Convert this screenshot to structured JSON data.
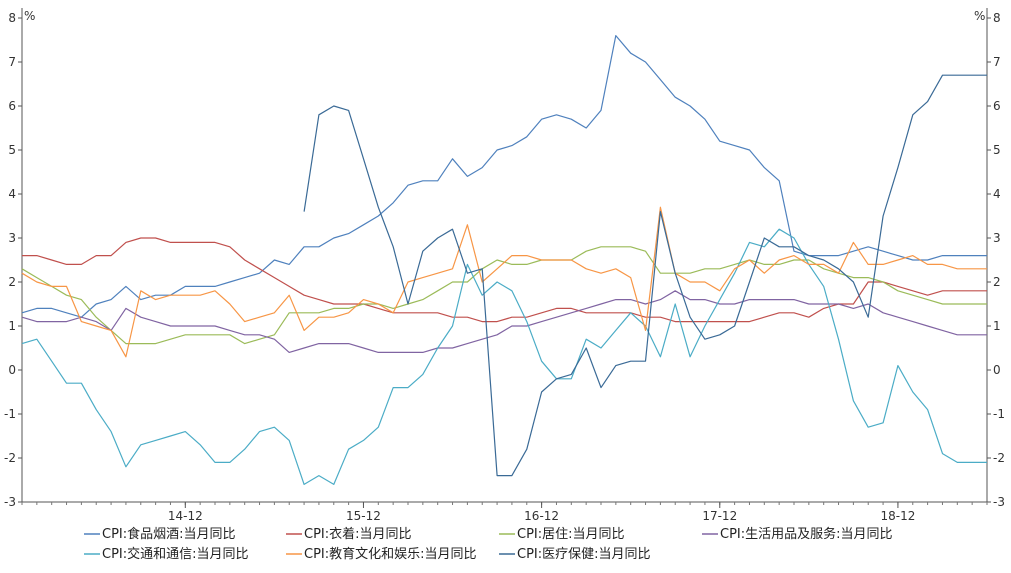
{
  "chart_data": {
    "type": "line",
    "title": "",
    "y_unit_left": "%",
    "y_unit_right": "%",
    "ylim": [
      -3,
      8
    ],
    "yticks": [
      -3,
      -2,
      -1,
      0,
      1,
      2,
      3,
      4,
      5,
      6,
      7,
      8
    ],
    "x_start": "2014-01",
    "x_end": "2019-06",
    "xticks": [
      "14-12",
      "15-12",
      "16-12",
      "17-12",
      "18-12"
    ],
    "grid": false,
    "legend_position": "bottom",
    "series": [
      {
        "name": "CPI:食品烟酒:当月同比",
        "color": "#4f81bd",
        "values": [
          1.3,
          1.4,
          1.4,
          1.3,
          1.2,
          1.5,
          1.6,
          1.9,
          1.6,
          1.7,
          1.7,
          1.9,
          1.9,
          1.9,
          2.0,
          2.1,
          2.2,
          2.5,
          2.4,
          2.8,
          2.8,
          3.0,
          3.1,
          3.3,
          3.5,
          3.8,
          4.2,
          4.3,
          4.3,
          4.8,
          4.4,
          4.6,
          5.0,
          5.1,
          5.3,
          5.7,
          5.8,
          5.7,
          5.5,
          5.9,
          7.6,
          7.2,
          7.0,
          6.6,
          6.2,
          6.0,
          5.7,
          5.2,
          5.1,
          5.0,
          4.6,
          4.3,
          2.7,
          2.6,
          2.6,
          2.6,
          2.7,
          2.8,
          2.7,
          2.6,
          2.5,
          2.5,
          2.6,
          2.6,
          2.6,
          2.6
        ]
      },
      {
        "name": "CPI:衣着:当月同比",
        "color": "#c0504d",
        "values": [
          2.6,
          2.6,
          2.5,
          2.4,
          2.4,
          2.6,
          2.6,
          2.9,
          3.0,
          3.0,
          2.9,
          2.9,
          2.9,
          2.9,
          2.8,
          2.5,
          2.3,
          2.1,
          1.9,
          1.7,
          1.6,
          1.5,
          1.5,
          1.5,
          1.4,
          1.3,
          1.3,
          1.3,
          1.3,
          1.2,
          1.2,
          1.1,
          1.1,
          1.2,
          1.2,
          1.3,
          1.4,
          1.4,
          1.3,
          1.3,
          1.3,
          1.3,
          1.2,
          1.2,
          1.1,
          1.1,
          1.1,
          1.1,
          1.1,
          1.1,
          1.2,
          1.3,
          1.3,
          1.2,
          1.4,
          1.5,
          1.5,
          2.0,
          2.0,
          1.9,
          1.8,
          1.7,
          1.8,
          1.8,
          1.8,
          1.8
        ]
      },
      {
        "name": "CPI:居住:当月同比",
        "color": "#9bbb59",
        "values": [
          2.3,
          2.1,
          1.9,
          1.7,
          1.6,
          1.2,
          0.9,
          0.6,
          0.6,
          0.6,
          0.7,
          0.8,
          0.8,
          0.8,
          0.8,
          0.6,
          0.7,
          0.8,
          1.3,
          1.3,
          1.3,
          1.4,
          1.4,
          1.5,
          1.5,
          1.4,
          1.5,
          1.6,
          1.8,
          2.0,
          2.0,
          2.3,
          2.5,
          2.4,
          2.4,
          2.5,
          2.5,
          2.5,
          2.7,
          2.8,
          2.8,
          2.8,
          2.7,
          2.2,
          2.2,
          2.2,
          2.3,
          2.3,
          2.4,
          2.5,
          2.4,
          2.4,
          2.5,
          2.5,
          2.3,
          2.2,
          2.1,
          2.1,
          2.0,
          1.8,
          1.7,
          1.6,
          1.5,
          1.5,
          1.5,
          1.5
        ]
      },
      {
        "name": "CPI:生活用品及服务:当月同比",
        "color": "#8064a2",
        "values": [
          1.2,
          1.1,
          1.1,
          1.1,
          1.2,
          1.1,
          0.9,
          1.4,
          1.2,
          1.1,
          1.0,
          1.0,
          1.0,
          1.0,
          0.9,
          0.8,
          0.8,
          0.7,
          0.4,
          0.5,
          0.6,
          0.6,
          0.6,
          0.5,
          0.4,
          0.4,
          0.4,
          0.4,
          0.5,
          0.5,
          0.6,
          0.7,
          0.8,
          1.0,
          1.0,
          1.1,
          1.2,
          1.3,
          1.4,
          1.5,
          1.6,
          1.6,
          1.5,
          1.6,
          1.8,
          1.6,
          1.6,
          1.5,
          1.5,
          1.6,
          1.6,
          1.6,
          1.6,
          1.5,
          1.5,
          1.5,
          1.4,
          1.5,
          1.3,
          1.2,
          1.1,
          1.0,
          0.9,
          0.8,
          0.8,
          0.8
        ]
      },
      {
        "name": "CPI:交通和通信:当月同比",
        "color": "#4bacc6",
        "values": [
          0.6,
          0.7,
          0.2,
          -0.3,
          -0.3,
          -0.9,
          -1.4,
          -2.2,
          -1.7,
          -1.6,
          -1.5,
          -1.4,
          -1.7,
          -2.1,
          -2.1,
          -1.8,
          -1.4,
          -1.3,
          -1.6,
          -2.6,
          -2.4,
          -2.6,
          -1.8,
          -1.6,
          -1.3,
          -0.4,
          -0.4,
          -0.1,
          0.5,
          1.0,
          2.4,
          1.7,
          2.0,
          1.8,
          1.1,
          0.2,
          -0.2,
          -0.2,
          0.7,
          0.5,
          0.9,
          1.3,
          1.0,
          0.3,
          1.5,
          0.3,
          1.0,
          1.6,
          2.2,
          2.9,
          2.8,
          3.2,
          3.0,
          2.4,
          1.9,
          0.7,
          -0.7,
          -1.3,
          -1.2,
          0.1,
          -0.5,
          -0.9,
          -1.9,
          -2.1,
          -2.1,
          -2.1
        ]
      },
      {
        "name": "CPI:教育文化和娱乐:当月同比",
        "color": "#f79646",
        "values": [
          2.2,
          2.0,
          1.9,
          1.9,
          1.1,
          1.0,
          0.9,
          0.3,
          1.8,
          1.6,
          1.7,
          1.7,
          1.7,
          1.8,
          1.5,
          1.1,
          1.2,
          1.3,
          1.7,
          0.9,
          1.2,
          1.2,
          1.3,
          1.6,
          1.5,
          1.3,
          2.0,
          2.1,
          2.2,
          2.3,
          3.3,
          2.0,
          2.3,
          2.6,
          2.6,
          2.5,
          2.5,
          2.5,
          2.3,
          2.2,
          2.3,
          2.1,
          0.9,
          3.7,
          2.2,
          2.0,
          2.0,
          1.8,
          2.3,
          2.5,
          2.2,
          2.5,
          2.6,
          2.4,
          2.4,
          2.2,
          2.9,
          2.4,
          2.4,
          2.5,
          2.6,
          2.4,
          2.4,
          2.3,
          2.3,
          2.3
        ]
      },
      {
        "name": "CPI:医疗保健:当月同比",
        "color": "#3a6a96",
        "values": [
          null,
          null,
          null,
          null,
          null,
          null,
          null,
          null,
          null,
          null,
          null,
          null,
          null,
          null,
          null,
          null,
          null,
          null,
          null,
          3.6,
          5.8,
          6.0,
          5.9,
          4.8,
          3.7,
          2.8,
          1.5,
          2.7,
          3.0,
          3.2,
          2.2,
          2.3,
          -2.4,
          -2.4,
          -1.8,
          -0.5,
          -0.2,
          -0.1,
          0.5,
          -0.4,
          0.1,
          0.2,
          0.2,
          3.6,
          2.2,
          1.2,
          0.7,
          0.8,
          1.0,
          2.0,
          3.0,
          2.8,
          2.8,
          2.6,
          2.5,
          2.3,
          2.0,
          1.2,
          3.5,
          4.6,
          5.8,
          6.1,
          6.7,
          6.7,
          6.7,
          6.7
        ]
      }
    ]
  }
}
